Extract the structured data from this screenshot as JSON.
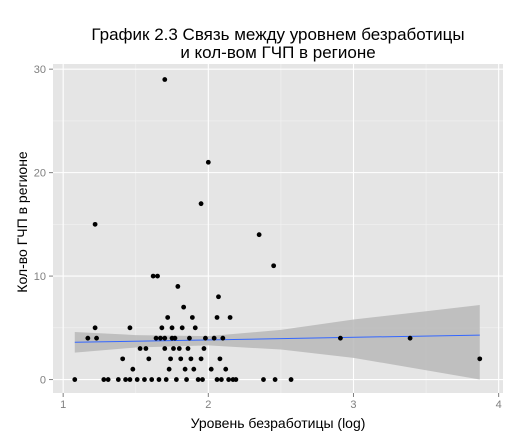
{
  "chart_data": {
    "type": "scatter",
    "title_lines": [
      "График 2.3 Связь между уровнем безработицы",
      "и кол-вом ГЧП в регионе"
    ],
    "xlabel": "Уровень безработицы (log)",
    "ylabel": "Кол-во ГЧП в регионе",
    "xlim": [
      0.93,
      4.03
    ],
    "ylim": [
      -1.3,
      30.5
    ],
    "xticks": [
      1,
      2,
      3,
      4
    ],
    "yticks": [
      0,
      10,
      20,
      30
    ],
    "grid": true,
    "colors": {
      "panel_bg": "#e5e5e5",
      "grid_major": "#ffffff",
      "grid_minor": "#f2f2f2",
      "points": "#000000",
      "ribbon": "#b8b8b8",
      "trend_line": "#3366ff",
      "tick_color": "#7f7f7f"
    },
    "trend": {
      "x": [
        1.08,
        3.87
      ],
      "y": [
        3.6,
        4.3
      ]
    },
    "ribbon": {
      "x": [
        1.08,
        1.5,
        2.0,
        2.5,
        3.0,
        3.5,
        3.87
      ],
      "lower": [
        2.6,
        3.1,
        3.3,
        2.9,
        2.1,
        0.9,
        0.0
      ],
      "upper": [
        4.6,
        4.3,
        4.2,
        4.8,
        5.8,
        6.6,
        7.2
      ]
    },
    "points": [
      {
        "x": 1.08,
        "y": 0
      },
      {
        "x": 1.17,
        "y": 4
      },
      {
        "x": 1.22,
        "y": 5
      },
      {
        "x": 1.22,
        "y": 15
      },
      {
        "x": 1.23,
        "y": 4
      },
      {
        "x": 1.28,
        "y": 0
      },
      {
        "x": 1.31,
        "y": 0
      },
      {
        "x": 1.38,
        "y": 0
      },
      {
        "x": 1.41,
        "y": 2
      },
      {
        "x": 1.43,
        "y": 0
      },
      {
        "x": 1.46,
        "y": 0
      },
      {
        "x": 1.46,
        "y": 5
      },
      {
        "x": 1.48,
        "y": 1
      },
      {
        "x": 1.51,
        "y": 0
      },
      {
        "x": 1.53,
        "y": 3
      },
      {
        "x": 1.56,
        "y": 0
      },
      {
        "x": 1.57,
        "y": 3
      },
      {
        "x": 1.59,
        "y": 2
      },
      {
        "x": 1.61,
        "y": 0
      },
      {
        "x": 1.62,
        "y": 10
      },
      {
        "x": 1.64,
        "y": 4
      },
      {
        "x": 1.65,
        "y": 10
      },
      {
        "x": 1.66,
        "y": 0
      },
      {
        "x": 1.67,
        "y": 4
      },
      {
        "x": 1.68,
        "y": 5
      },
      {
        "x": 1.7,
        "y": 29
      },
      {
        "x": 1.7,
        "y": 4
      },
      {
        "x": 1.7,
        "y": 3
      },
      {
        "x": 1.71,
        "y": 0
      },
      {
        "x": 1.72,
        "y": 6
      },
      {
        "x": 1.73,
        "y": 1
      },
      {
        "x": 1.74,
        "y": 2
      },
      {
        "x": 1.75,
        "y": 4
      },
      {
        "x": 1.75,
        "y": 5
      },
      {
        "x": 1.76,
        "y": 3
      },
      {
        "x": 1.77,
        "y": 4
      },
      {
        "x": 1.78,
        "y": 0
      },
      {
        "x": 1.79,
        "y": 9
      },
      {
        "x": 1.8,
        "y": 3
      },
      {
        "x": 1.81,
        "y": 2
      },
      {
        "x": 1.82,
        "y": 5
      },
      {
        "x": 1.83,
        "y": 7
      },
      {
        "x": 1.84,
        "y": 1
      },
      {
        "x": 1.85,
        "y": 0
      },
      {
        "x": 1.86,
        "y": 3
      },
      {
        "x": 1.87,
        "y": 4
      },
      {
        "x": 1.88,
        "y": 2
      },
      {
        "x": 1.89,
        "y": 6
      },
      {
        "x": 1.9,
        "y": 1
      },
      {
        "x": 1.91,
        "y": 5
      },
      {
        "x": 1.93,
        "y": 0
      },
      {
        "x": 1.95,
        "y": 17
      },
      {
        "x": 1.95,
        "y": 2
      },
      {
        "x": 1.96,
        "y": 0
      },
      {
        "x": 1.97,
        "y": 3
      },
      {
        "x": 1.98,
        "y": 4
      },
      {
        "x": 2.0,
        "y": 21
      },
      {
        "x": 2.02,
        "y": 1
      },
      {
        "x": 2.04,
        "y": 4
      },
      {
        "x": 2.06,
        "y": 0
      },
      {
        "x": 2.06,
        "y": 6
      },
      {
        "x": 2.07,
        "y": 8
      },
      {
        "x": 2.08,
        "y": 2
      },
      {
        "x": 2.09,
        "y": 0
      },
      {
        "x": 2.1,
        "y": 4
      },
      {
        "x": 2.12,
        "y": 1
      },
      {
        "x": 2.14,
        "y": 0
      },
      {
        "x": 2.15,
        "y": 6
      },
      {
        "x": 2.17,
        "y": 0
      },
      {
        "x": 2.19,
        "y": 0
      },
      {
        "x": 2.35,
        "y": 14
      },
      {
        "x": 2.38,
        "y": 0
      },
      {
        "x": 2.45,
        "y": 11
      },
      {
        "x": 2.46,
        "y": 0
      },
      {
        "x": 2.57,
        "y": 0
      },
      {
        "x": 2.91,
        "y": 4
      },
      {
        "x": 3.39,
        "y": 4
      },
      {
        "x": 3.87,
        "y": 2
      }
    ]
  }
}
